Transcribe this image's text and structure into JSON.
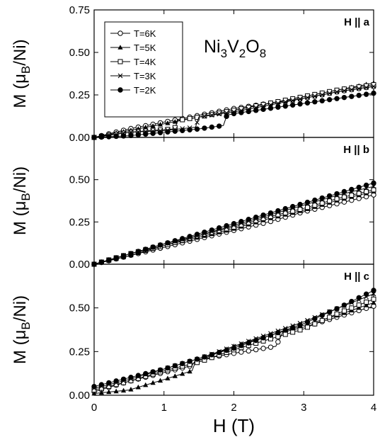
{
  "chart_data": {
    "type": "line",
    "compound": "Ni3V2O8",
    "compound_parts": [
      {
        "text": "Ni",
        "sub": false
      },
      {
        "text": "3",
        "sub": true
      },
      {
        "text": "V",
        "sub": false
      },
      {
        "text": "2",
        "sub": true
      },
      {
        "text": "O",
        "sub": false
      },
      {
        "text": "8",
        "sub": true
      }
    ],
    "xlabel": "H (T)",
    "xlim": [
      0,
      4
    ],
    "xticks": [
      0,
      1,
      2,
      3,
      4
    ],
    "ylabel_parts": [
      {
        "text": "M (μ",
        "sub": false
      },
      {
        "text": "B",
        "sub": true
      },
      {
        "text": "/Ni)",
        "sub": false
      }
    ],
    "legend_position": "top-left",
    "legend": [
      {
        "label": "T=6K",
        "marker": "circle-open"
      },
      {
        "label": "T=5K",
        "marker": "triangle-filled"
      },
      {
        "label": "T=4K",
        "marker": "square-open"
      },
      {
        "label": "T=3K",
        "marker": "x"
      },
      {
        "label": "T=2K",
        "marker": "circle-filled"
      }
    ],
    "panels": [
      {
        "label_parts": [
          {
            "text": "H",
            "bold": true
          },
          {
            "text": " || a",
            "bold": true
          }
        ],
        "ylim": [
          0,
          0.75
        ],
        "yticks": [
          "0.00",
          "0.25",
          "0.50",
          "0.75"
        ],
        "series": [
          {
            "name": "T=6K",
            "points": [
              [
                0,
                0
              ],
              [
                0.5,
                0.05
              ],
              [
                1,
                0.09
              ],
              [
                1.5,
                0.13
              ],
              [
                2,
                0.17
              ],
              [
                2.5,
                0.2
              ],
              [
                3,
                0.23
              ],
              [
                3.5,
                0.27
              ],
              [
                4,
                0.3
              ]
            ]
          },
          {
            "name": "T=5K",
            "points": [
              [
                0,
                0
              ],
              [
                0.5,
                0.04
              ],
              [
                1,
                0.08
              ],
              [
                1.5,
                0.12
              ],
              [
                2,
                0.16
              ],
              [
                2.5,
                0.2
              ],
              [
                3,
                0.24
              ],
              [
                3.5,
                0.28
              ],
              [
                4,
                0.32
              ]
            ]
          },
          {
            "name": "T=4K",
            "points": [
              [
                0,
                0
              ],
              [
                0.5,
                0.03
              ],
              [
                0.8,
                0.04
              ],
              [
                1.15,
                0.05
              ],
              [
                1.2,
                0.1
              ],
              [
                1.5,
                0.12
              ],
              [
                2,
                0.16
              ],
              [
                2.5,
                0.2
              ],
              [
                3,
                0.24
              ],
              [
                3.5,
                0.28
              ],
              [
                4,
                0.31
              ]
            ]
          },
          {
            "name": "T=3K",
            "points": [
              [
                0,
                0
              ],
              [
                0.5,
                0.03
              ],
              [
                1,
                0.04
              ],
              [
                1.45,
                0.06
              ],
              [
                1.5,
                0.12
              ],
              [
                2,
                0.15
              ],
              [
                2.5,
                0.19
              ],
              [
                3,
                0.23
              ],
              [
                3.5,
                0.27
              ],
              [
                4,
                0.3
              ]
            ]
          },
          {
            "name": "T=2K",
            "points": [
              [
                0,
                0
              ],
              [
                0.5,
                0.01
              ],
              [
                1,
                0.03
              ],
              [
                1.5,
                0.05
              ],
              [
                1.85,
                0.07
              ],
              [
                1.9,
                0.13
              ],
              [
                2,
                0.14
              ],
              [
                2.5,
                0.17
              ],
              [
                3,
                0.2
              ],
              [
                3.5,
                0.23
              ],
              [
                4,
                0.26
              ]
            ]
          }
        ]
      },
      {
        "label_parts": [
          {
            "text": "H",
            "bold": true
          },
          {
            "text": " || b",
            "bold": true
          }
        ],
        "ylim": [
          0,
          0.75
        ],
        "yticks": [
          "0.00",
          "0.25",
          "0.50",
          ""
        ],
        "series": [
          {
            "name": "T=6K",
            "points": [
              [
                0,
                0
              ],
              [
                0.5,
                0.05
              ],
              [
                1,
                0.1
              ],
              [
                1.5,
                0.15
              ],
              [
                2,
                0.2
              ],
              [
                2.5,
                0.25
              ],
              [
                3,
                0.31
              ],
              [
                3.5,
                0.36
              ],
              [
                4,
                0.41
              ]
            ]
          },
          {
            "name": "T=5K",
            "points": [
              [
                0,
                0
              ],
              [
                0.5,
                0.05
              ],
              [
                1,
                0.11
              ],
              [
                1.5,
                0.16
              ],
              [
                2,
                0.21
              ],
              [
                2.5,
                0.27
              ],
              [
                3,
                0.32
              ],
              [
                3.5,
                0.38
              ],
              [
                4,
                0.43
              ]
            ]
          },
          {
            "name": "T=4K",
            "points": [
              [
                0,
                0
              ],
              [
                0.5,
                0.06
              ],
              [
                1,
                0.11
              ],
              [
                1.5,
                0.17
              ],
              [
                2,
                0.22
              ],
              [
                2.5,
                0.28
              ],
              [
                3,
                0.33
              ],
              [
                3.5,
                0.39
              ],
              [
                4,
                0.44
              ]
            ]
          },
          {
            "name": "T=3K",
            "points": [
              [
                0,
                0
              ],
              [
                0.5,
                0.06
              ],
              [
                1,
                0.12
              ],
              [
                1.5,
                0.17
              ],
              [
                2,
                0.23
              ],
              [
                2.5,
                0.29
              ],
              [
                3,
                0.35
              ],
              [
                3.5,
                0.41
              ],
              [
                4,
                0.46
              ]
            ]
          },
          {
            "name": "T=2K",
            "points": [
              [
                0,
                0
              ],
              [
                0.5,
                0.06
              ],
              [
                1,
                0.12
              ],
              [
                1.5,
                0.18
              ],
              [
                2,
                0.24
              ],
              [
                2.5,
                0.3
              ],
              [
                3,
                0.36
              ],
              [
                3.5,
                0.42
              ],
              [
                4,
                0.48
              ]
            ]
          }
        ]
      },
      {
        "label_parts": [
          {
            "text": "H",
            "bold": true
          },
          {
            "text": " || c",
            "bold": true
          }
        ],
        "ylim": [
          0,
          0.75
        ],
        "yticks": [
          "0.00",
          "0.25",
          "0.50",
          ""
        ],
        "series": [
          {
            "name": "T=6K",
            "points": [
              [
                0,
                0.02
              ],
              [
                0.5,
                0.08
              ],
              [
                1,
                0.13
              ],
              [
                1.4,
                0.17
              ],
              [
                1.45,
                0.2
              ],
              [
                2,
                0.24
              ],
              [
                2.6,
                0.28
              ],
              [
                2.7,
                0.36
              ],
              [
                3,
                0.39
              ],
              [
                3.5,
                0.45
              ],
              [
                4,
                0.51
              ]
            ]
          },
          {
            "name": "T=5K",
            "points": [
              [
                0,
                0.01
              ],
              [
                0.5,
                0.03
              ],
              [
                1,
                0.09
              ],
              [
                1.4,
                0.14
              ],
              [
                1.45,
                0.19
              ],
              [
                2,
                0.28
              ],
              [
                2.5,
                0.34
              ],
              [
                3,
                0.4
              ],
              [
                3.5,
                0.46
              ],
              [
                4,
                0.53
              ]
            ]
          },
          {
            "name": "T=4K",
            "points": [
              [
                0,
                0.03
              ],
              [
                0.5,
                0.08
              ],
              [
                1,
                0.14
              ],
              [
                1.5,
                0.19
              ],
              [
                2,
                0.26
              ],
              [
                2.5,
                0.32
              ],
              [
                3,
                0.38
              ],
              [
                3.5,
                0.47
              ],
              [
                4,
                0.55
              ]
            ]
          },
          {
            "name": "T=3K",
            "points": [
              [
                0,
                0.04
              ],
              [
                0.5,
                0.09
              ],
              [
                1,
                0.15
              ],
              [
                1.5,
                0.21
              ],
              [
                2,
                0.28
              ],
              [
                2.5,
                0.35
              ],
              [
                3,
                0.42
              ],
              [
                3.5,
                0.5
              ],
              [
                4,
                0.58
              ]
            ]
          },
          {
            "name": "T=2K",
            "points": [
              [
                0,
                0.05
              ],
              [
                0.5,
                0.1
              ],
              [
                1,
                0.15
              ],
              [
                1.5,
                0.21
              ],
              [
                2,
                0.27
              ],
              [
                2.5,
                0.34
              ],
              [
                3,
                0.41
              ],
              [
                3.5,
                0.5
              ],
              [
                4,
                0.6
              ]
            ]
          }
        ]
      }
    ]
  }
}
